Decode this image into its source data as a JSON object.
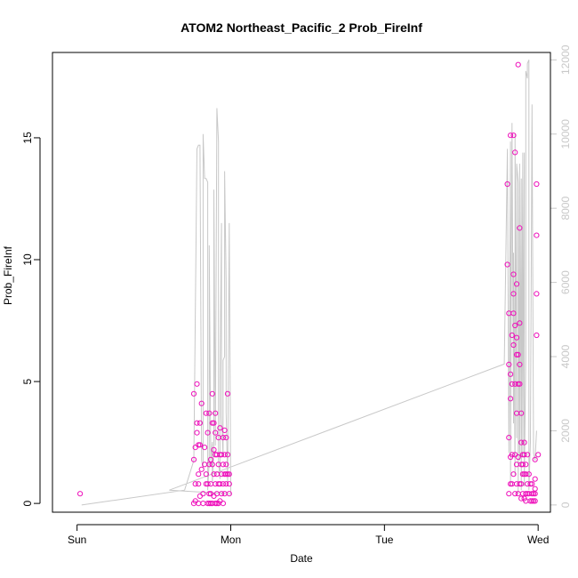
{
  "chart_data": {
    "type": "scatter",
    "title": "ATOM2 Northeast_Pacific_2 Prob_FireInf",
    "xlabel": "Date",
    "ylabel": "Prob_FireInf",
    "x_unit": "days",
    "x_ticks": [
      {
        "value": 0,
        "label": "Sun"
      },
      {
        "value": 1,
        "label": "Mon"
      },
      {
        "value": 2,
        "label": "Tue"
      },
      {
        "value": 3,
        "label": "Wed"
      }
    ],
    "xlim": [
      -0.16,
      3.08
    ],
    "ylim": [
      -0.36,
      18.5
    ],
    "y_ticks": [
      0,
      5,
      10,
      15
    ],
    "y2lim": [
      -195,
      12200
    ],
    "y2_ticks": [
      0,
      2000,
      4000,
      6000,
      8000,
      10000,
      12000
    ],
    "colors": {
      "points": "#ee11bb",
      "line": "#c8c8c8",
      "axis": "#000000",
      "axis2": "#c8c8c8"
    },
    "series": [
      {
        "style": "points",
        "axis": "left",
        "x": [
          0.02,
          0.76,
          0.76,
          0.76,
          0.77,
          0.77,
          0.77,
          0.78,
          0.78,
          0.78,
          0.79,
          0.79,
          0.79,
          0.79,
          0.8,
          0.8,
          0.8,
          0.81,
          0.81,
          0.82,
          0.82,
          0.83,
          0.83,
          0.84,
          0.84,
          0.84,
          0.85,
          0.85,
          0.85,
          0.86,
          0.86,
          0.86,
          0.86,
          0.87,
          0.87,
          0.87,
          0.87,
          0.88,
          0.88,
          0.88,
          0.88,
          0.89,
          0.89,
          0.89,
          0.89,
          0.9,
          0.9,
          0.9,
          0.9,
          0.9,
          0.91,
          0.91,
          0.91,
          0.91,
          0.92,
          0.92,
          0.92,
          0.92,
          0.93,
          0.93,
          0.93,
          0.93,
          0.94,
          0.94,
          0.94,
          0.95,
          0.95,
          0.95,
          0.95,
          0.96,
          0.96,
          0.96,
          0.96,
          0.97,
          0.97,
          0.97,
          0.97,
          0.98,
          0.98,
          0.98,
          0.99,
          0.99,
          0.99,
          2.8,
          2.8,
          2.81,
          2.81,
          2.81,
          2.81,
          2.82,
          2.82,
          2.82,
          2.82,
          2.82,
          2.83,
          2.83,
          2.83,
          2.83,
          2.84,
          2.84,
          2.84,
          2.84,
          2.84,
          2.84,
          2.85,
          2.85,
          2.85,
          2.85,
          2.85,
          2.86,
          2.86,
          2.86,
          2.86,
          2.86,
          2.86,
          2.87,
          2.87,
          2.87,
          2.87,
          2.87,
          2.88,
          2.88,
          2.88,
          2.88,
          2.88,
          2.89,
          2.89,
          2.89,
          2.89,
          2.89,
          2.9,
          2.9,
          2.9,
          2.9,
          2.91,
          2.91,
          2.91,
          2.91,
          2.92,
          2.92,
          2.92,
          2.92,
          2.93,
          2.93,
          2.93,
          2.94,
          2.94,
          2.95,
          2.95,
          2.96,
          2.96,
          2.96,
          2.97,
          2.97,
          2.98,
          2.98,
          2.98,
          2.98,
          2.98,
          2.99
        ],
        "y": [
          0.4,
          4.5,
          1.8,
          0,
          0.8,
          2.3,
          0.1,
          4.9,
          3.3,
          2.9,
          2.4,
          1.2,
          0.8,
          0,
          3.3,
          2.4,
          0.3,
          4.1,
          1.4,
          0.4,
          0,
          2.3,
          1.6,
          3.7,
          1.2,
          0.8,
          2.9,
          0.8,
          0,
          3.7,
          1.6,
          0.4,
          0,
          1.8,
          0.8,
          0.4,
          0,
          4.5,
          3.3,
          1.6,
          0,
          3.3,
          2.2,
          1.2,
          0.3,
          3.7,
          2.9,
          2.0,
          0.8,
          0,
          2.0,
          1.2,
          0.4,
          0,
          2.7,
          1.6,
          0.8,
          0,
          3.1,
          2.0,
          0.8,
          0.1,
          2.0,
          1.2,
          0.4,
          2.7,
          1.6,
          0.8,
          0,
          3.0,
          2.0,
          1.2,
          0.4,
          2.7,
          1.6,
          1.2,
          0.8,
          4.5,
          2.0,
          1.2,
          1.2,
          0.8,
          0.4,
          13.1,
          9.8,
          7.8,
          5.7,
          2.7,
          0.4,
          15.1,
          5.3,
          4.3,
          1.9,
          0.8,
          6.9,
          4.9,
          2.0,
          0.8,
          15.1,
          9.4,
          8.6,
          7.8,
          6.5,
          1.2,
          14.4,
          7.3,
          4.9,
          2.0,
          0.4,
          9.0,
          6.8,
          6.1,
          3.7,
          1.6,
          0.8,
          18.0,
          6.1,
          4.9,
          1.9,
          0.4,
          11.3,
          7.4,
          5.7,
          4.9,
          0.8,
          3.7,
          2.5,
          1.6,
          0.8,
          0.2,
          2.0,
          1.6,
          1.2,
          0.4,
          2.5,
          2.0,
          1.2,
          0.2,
          1.6,
          1.2,
          0.4,
          0.1,
          2.0,
          0.8,
          0.4,
          1.2,
          0.4,
          0.8,
          0.1,
          0.8,
          0.4,
          0.1,
          0.4,
          0.1,
          1.8,
          1.0,
          0.6,
          0.4,
          0.1,
          13.1
        ],
        "x_extra": [
          2.99,
          2.99,
          2.99,
          3.0
        ],
        "y_extra": [
          11.0,
          8.6,
          6.9,
          2.0
        ]
      },
      {
        "style": "line",
        "axis": "right",
        "x": [
          0.03,
          0.7,
          0.76,
          0.78,
          0.79,
          0.8,
          0.81,
          0.82,
          0.82,
          0.83,
          0.84,
          0.85,
          0.85,
          0.86,
          0.86,
          0.87,
          0.88,
          0.88,
          0.89,
          0.89,
          0.9,
          0.91,
          0.92,
          0.92,
          0.93,
          0.93,
          0.94,
          0.94,
          0.95,
          0.95,
          0.96,
          0.96,
          0.97,
          0.97,
          0.98,
          0.99,
          1.0,
          0.6,
          2.78,
          2.8,
          2.81,
          2.82,
          2.82,
          2.83,
          2.84,
          2.84,
          2.85,
          2.85,
          2.86,
          2.86,
          2.87,
          2.87,
          2.88,
          2.88,
          2.89,
          2.89,
          2.9,
          2.9,
          2.91,
          2.91,
          2.92,
          2.92,
          2.93,
          2.93,
          2.94,
          2.94,
          2.95,
          2.96,
          2.97,
          2.98,
          2.99
        ],
        "y": [
          0,
          400,
          1200,
          9600,
          9700,
          9700,
          1200,
          1000,
          10000,
          8800,
          8800,
          8700,
          400,
          1200,
          7000,
          1200,
          1700,
          600,
          1600,
          8500,
          1600,
          10700,
          9800,
          1200,
          700,
          3400,
          7600,
          2400,
          1300,
          3900,
          4000,
          9000,
          6000,
          2500,
          600,
          7600,
          300,
          400,
          3800,
          9600,
          1400,
          9800,
          500,
          10300,
          2200,
          6800,
          800,
          10000,
          1800,
          9200,
          8700,
          300,
          9200,
          1200,
          8800,
          400,
          9500,
          1300,
          9500,
          500,
          4000,
          11700,
          11500,
          11900,
          12000,
          400,
          1700,
          10800,
          1400,
          1200,
          2000
        ]
      }
    ]
  }
}
